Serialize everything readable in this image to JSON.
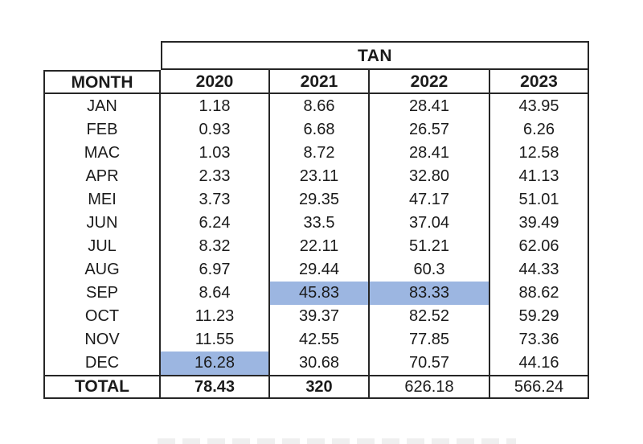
{
  "table": {
    "title": "TAN",
    "header": {
      "month": "MONTH",
      "years": [
        "2020",
        "2021",
        "2022",
        "2023"
      ]
    },
    "rows": [
      {
        "month": "JAN",
        "values": [
          "1.18",
          "8.66",
          "28.41",
          "43.95"
        ]
      },
      {
        "month": "FEB",
        "values": [
          "0.93",
          "6.68",
          "26.57",
          "6.26"
        ]
      },
      {
        "month": "MAC",
        "values": [
          "1.03",
          "8.72",
          "28.41",
          "12.58"
        ]
      },
      {
        "month": "APR",
        "values": [
          "2.33",
          "23.11",
          "32.80",
          "41.13"
        ]
      },
      {
        "month": "MEI",
        "values": [
          "3.73",
          "29.35",
          "47.17",
          "51.01"
        ]
      },
      {
        "month": "JUN",
        "values": [
          "6.24",
          "33.5",
          "37.04",
          "39.49"
        ]
      },
      {
        "month": "JUL",
        "values": [
          "8.32",
          "22.11",
          "51.21",
          "62.06"
        ]
      },
      {
        "month": "AUG",
        "values": [
          "6.97",
          "29.44",
          "60.3",
          "44.33"
        ]
      },
      {
        "month": "SEP",
        "values": [
          "8.64",
          "45.83",
          "83.33",
          "88.62"
        ]
      },
      {
        "month": "OCT",
        "values": [
          "11.23",
          "39.37",
          "82.52",
          "59.29"
        ]
      },
      {
        "month": "NOV",
        "values": [
          "11.55",
          "42.55",
          "77.85",
          "73.36"
        ]
      },
      {
        "month": "DEC",
        "values": [
          "16.28",
          "30.68",
          "70.57",
          "44.16"
        ]
      }
    ],
    "total": {
      "label": "TOTAL",
      "values": [
        "78.43",
        "320",
        "626.18",
        "566.24"
      ]
    },
    "highlight_color": "#9cb6e1",
    "highlighted_cells": [
      {
        "month": "DEC",
        "year": "2020"
      },
      {
        "month": "SEP",
        "year": "2021"
      },
      {
        "month": "SEP",
        "year": "2022"
      }
    ],
    "border_color": "#262626"
  },
  "chart_data": {
    "type": "table",
    "title": "TAN",
    "columns": [
      "MONTH",
      "2020",
      "2021",
      "2022",
      "2023"
    ],
    "categories": [
      "JAN",
      "FEB",
      "MAC",
      "APR",
      "MEI",
      "JUN",
      "JUL",
      "AUG",
      "SEP",
      "OCT",
      "NOV",
      "DEC"
    ],
    "series": [
      {
        "name": "2020",
        "values": [
          1.18,
          0.93,
          1.03,
          2.33,
          3.73,
          6.24,
          8.32,
          6.97,
          8.64,
          11.23,
          11.55,
          16.28
        ],
        "total": 78.43
      },
      {
        "name": "2021",
        "values": [
          8.66,
          6.68,
          8.72,
          23.11,
          29.35,
          33.5,
          22.11,
          29.44,
          45.83,
          39.37,
          42.55,
          30.68
        ],
        "total": 320
      },
      {
        "name": "2022",
        "values": [
          28.41,
          26.57,
          28.41,
          32.8,
          47.17,
          37.04,
          51.21,
          60.3,
          83.33,
          82.52,
          77.85,
          70.57
        ],
        "total": 626.18
      },
      {
        "name": "2023",
        "values": [
          43.95,
          6.26,
          12.58,
          41.13,
          51.01,
          39.49,
          62.06,
          44.33,
          88.62,
          59.29,
          73.36,
          44.16
        ],
        "total": 566.24
      }
    ],
    "highlighted_values": [
      {
        "month": "DEC",
        "year": "2020",
        "value": 16.28
      },
      {
        "month": "SEP",
        "year": "2021",
        "value": 45.83
      },
      {
        "month": "SEP",
        "year": "2022",
        "value": 83.33
      }
    ]
  }
}
